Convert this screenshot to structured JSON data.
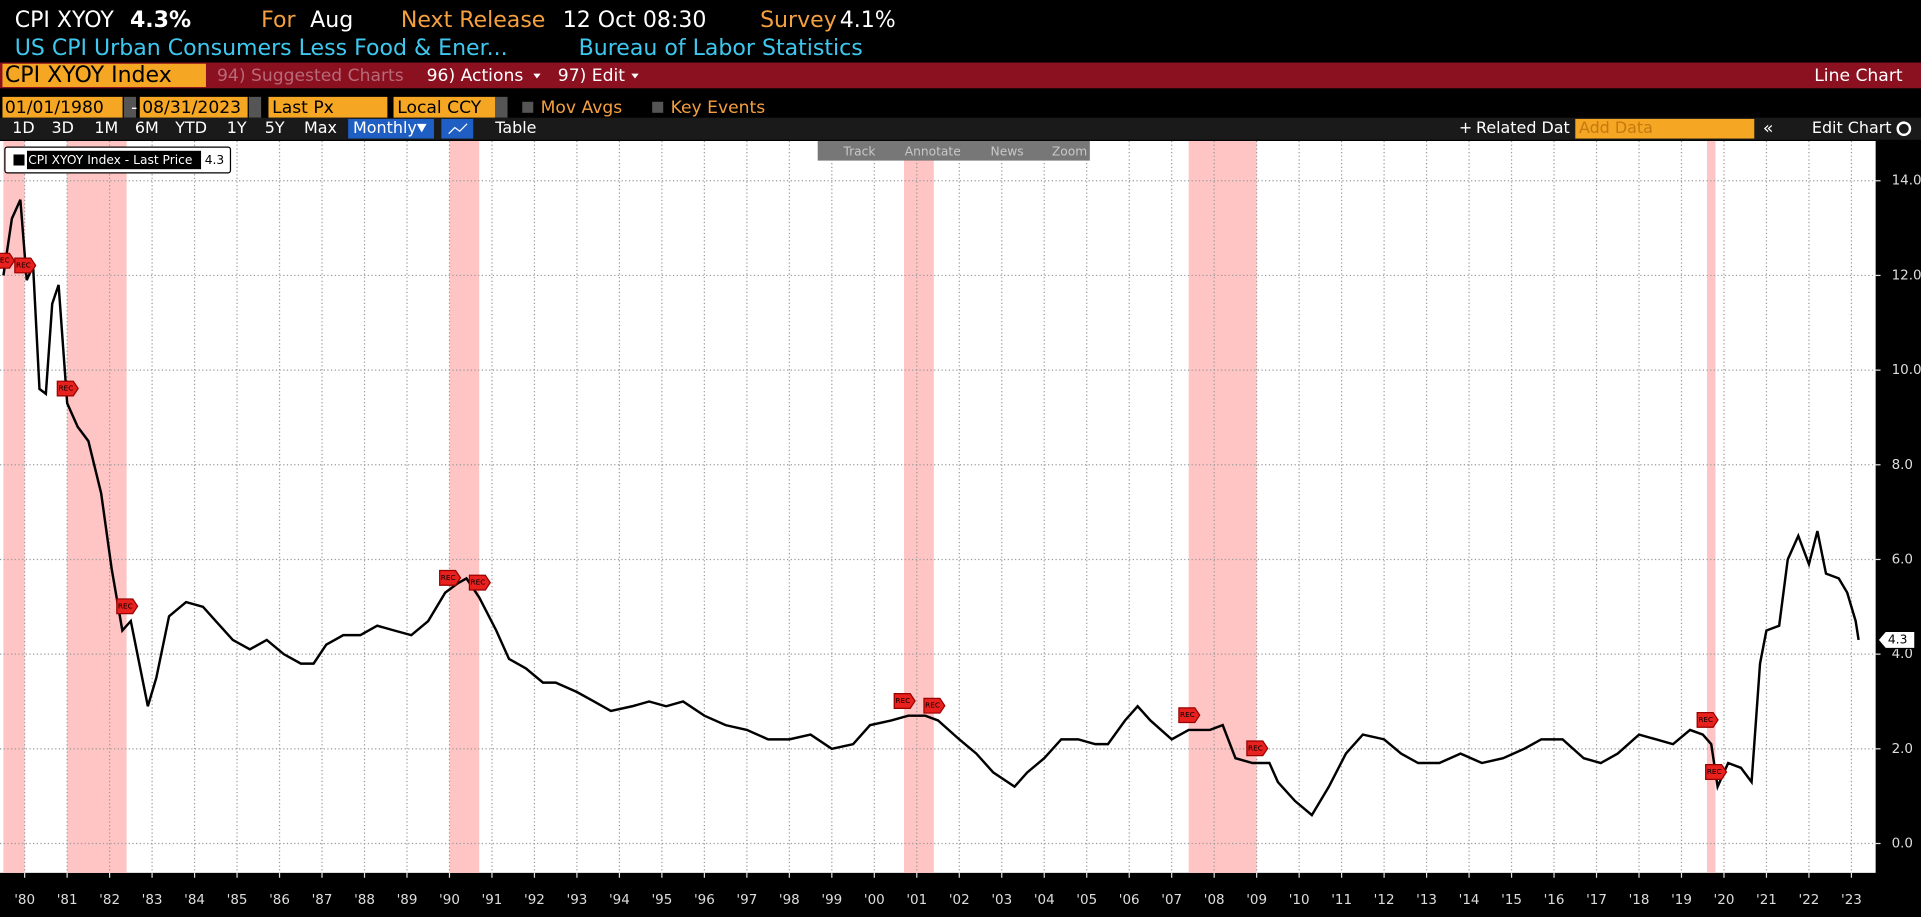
{
  "header": {
    "ticker": "CPI XYOY",
    "last": "4.3%",
    "for_label": "For",
    "for_value": "Aug",
    "release_label": "Next Release",
    "release_value": "12 Oct 08:30",
    "survey_label": "Survey",
    "survey_value": "4.1%",
    "description": "US CPI Urban Consumers Less Food & Ener...",
    "source": "Bureau of Labor Statistics"
  },
  "command_bar": {
    "security": "CPI XYOY Index",
    "menu": [
      "94) Suggested Charts",
      "96) Actions",
      "97) Edit"
    ],
    "view": "Line Chart"
  },
  "settings": {
    "start": "01/01/1980",
    "separator": "-",
    "end": "08/31/2023",
    "field": "Last Px",
    "currency": "Local CCY",
    "mov_avgs": "Mov Avgs",
    "key_events": "Key Events"
  },
  "toolbar": {
    "periods": [
      "1D",
      "3D",
      "1M",
      "6M",
      "YTD",
      "1Y",
      "5Y",
      "Max"
    ],
    "frequency": "Monthly",
    "table": "Table",
    "related": "Related Dat",
    "add_data": "Add Data",
    "edit_chart": "Edit Chart"
  },
  "tools": [
    "Track",
    "Annotate",
    "News",
    "Zoom"
  ],
  "chart_data": {
    "type": "line",
    "legend": "CPI XYOY Index - Last Price",
    "last_value": 4.3,
    "rec_label": "REC",
    "xlim": [
      1979.92,
      2024.07
    ],
    "ylim": [
      -0.62,
      14.84
    ],
    "grid": true,
    "yticks": [
      {
        "value": 0,
        "label": "0.0"
      },
      {
        "value": 2,
        "label": "2.0"
      },
      {
        "value": 4,
        "label": "4.0"
      },
      {
        "value": 6,
        "label": "6.0"
      },
      {
        "value": 8,
        "label": "8.0"
      },
      {
        "value": 10,
        "label": "10.0"
      },
      {
        "value": 12,
        "label": "12.0"
      },
      {
        "value": 14,
        "label": "14.0"
      }
    ],
    "xticks": [
      {
        "value": 1980.5,
        "label": "'80"
      },
      {
        "value": 1981.5,
        "label": "'81"
      },
      {
        "value": 1982.5,
        "label": "'82"
      },
      {
        "value": 1983.5,
        "label": "'83"
      },
      {
        "value": 1984.5,
        "label": "'84"
      },
      {
        "value": 1985.5,
        "label": "'85"
      },
      {
        "value": 1986.5,
        "label": "'86"
      },
      {
        "value": 1987.5,
        "label": "'87"
      },
      {
        "value": 1988.5,
        "label": "'88"
      },
      {
        "value": 1989.5,
        "label": "'89"
      },
      {
        "value": 1990.5,
        "label": "'90"
      },
      {
        "value": 1991.5,
        "label": "'91"
      },
      {
        "value": 1992.5,
        "label": "'92"
      },
      {
        "value": 1993.5,
        "label": "'93"
      },
      {
        "value": 1994.5,
        "label": "'94"
      },
      {
        "value": 1995.5,
        "label": "'95"
      },
      {
        "value": 1996.5,
        "label": "'96"
      },
      {
        "value": 1997.5,
        "label": "'97"
      },
      {
        "value": 1998.5,
        "label": "'98"
      },
      {
        "value": 1999.5,
        "label": "'99"
      },
      {
        "value": 2000.5,
        "label": "'00"
      },
      {
        "value": 2001.5,
        "label": "'01"
      },
      {
        "value": 2002.5,
        "label": "'02"
      },
      {
        "value": 2003.5,
        "label": "'03"
      },
      {
        "value": 2004.5,
        "label": "'04"
      },
      {
        "value": 2005.5,
        "label": "'05"
      },
      {
        "value": 2006.5,
        "label": "'06"
      },
      {
        "value": 2007.5,
        "label": "'07"
      },
      {
        "value": 2008.5,
        "label": "'08"
      },
      {
        "value": 2009.5,
        "label": "'09"
      },
      {
        "value": 2010.5,
        "label": "'10"
      },
      {
        "value": 2011.5,
        "label": "'11"
      },
      {
        "value": 2012.5,
        "label": "'12"
      },
      {
        "value": 2013.5,
        "label": "'13"
      },
      {
        "value": 2014.5,
        "label": "'14"
      },
      {
        "value": 2015.5,
        "label": "'15"
      },
      {
        "value": 2016.5,
        "label": "'16"
      },
      {
        "value": 2017.5,
        "label": "'17"
      },
      {
        "value": 2018.5,
        "label": "'18"
      },
      {
        "value": 2019.5,
        "label": "'19"
      },
      {
        "value": 2020.5,
        "label": "'20"
      },
      {
        "value": 2021.5,
        "label": "'21"
      },
      {
        "value": 2022.5,
        "label": "'22"
      },
      {
        "value": 2023.5,
        "label": "'23"
      }
    ],
    "recessions": [
      {
        "start": 1980.0,
        "end": 1980.5
      },
      {
        "start": 1981.5,
        "end": 1982.9
      },
      {
        "start": 1990.5,
        "end": 1991.2
      },
      {
        "start": 2001.2,
        "end": 2001.9
      },
      {
        "start": 2007.9,
        "end": 2009.5
      },
      {
        "start": 2020.1,
        "end": 2020.3
      }
    ],
    "series": [
      {
        "name": "CPI XYOY Index - Last Price",
        "color": "#000000",
        "x": [
          1980.0,
          1980.2,
          1980.4,
          1980.55,
          1980.7,
          1980.85,
          1981.0,
          1981.15,
          1981.3,
          1981.5,
          1981.75,
          1982.0,
          1982.3,
          1982.55,
          1982.8,
          1983.0,
          1983.4,
          1983.6,
          1983.9,
          1984.3,
          1984.7,
          1985.0,
          1985.4,
          1985.8,
          1986.2,
          1986.6,
          1987.0,
          1987.3,
          1987.6,
          1988.0,
          1988.4,
          1988.8,
          1989.2,
          1989.6,
          1990.0,
          1990.4,
          1990.7,
          1990.9,
          1991.2,
          1991.6,
          1991.9,
          1992.3,
          1992.7,
          1993.0,
          1993.5,
          1993.9,
          1994.3,
          1994.8,
          1995.2,
          1995.6,
          1996.0,
          1996.5,
          1997.0,
          1997.5,
          1998.0,
          1998.5,
          1999.0,
          1999.5,
          2000.0,
          2000.4,
          2000.9,
          2001.3,
          2001.7,
          2002.0,
          2002.5,
          2002.9,
          2003.3,
          2003.8,
          2004.1,
          2004.5,
          2004.9,
          2005.3,
          2005.7,
          2006.0,
          2006.4,
          2006.7,
          2007.0,
          2007.5,
          2007.9,
          2008.4,
          2008.7,
          2009.0,
          2009.4,
          2009.8,
          2010.0,
          2010.4,
          2010.8,
          2011.2,
          2011.6,
          2012.0,
          2012.5,
          2012.9,
          2013.3,
          2013.8,
          2014.3,
          2014.8,
          2015.3,
          2015.8,
          2016.2,
          2016.7,
          2017.2,
          2017.6,
          2018.0,
          2018.5,
          2018.9,
          2019.3,
          2019.7,
          2020.0,
          2020.2,
          2020.35,
          2020.6,
          2020.9,
          2021.15,
          2021.35,
          2021.5,
          2021.8,
          2022.0,
          2022.25,
          2022.5,
          2022.7,
          2022.9,
          2023.2,
          2023.4,
          2023.6,
          2023.67
        ],
        "values": [
          12.0,
          13.2,
          13.6,
          11.9,
          12.2,
          9.6,
          9.5,
          11.4,
          11.8,
          9.3,
          8.8,
          8.5,
          7.4,
          5.8,
          4.5,
          4.7,
          2.9,
          3.5,
          4.8,
          5.1,
          5.0,
          4.7,
          4.3,
          4.1,
          4.3,
          4.0,
          3.8,
          3.8,
          4.2,
          4.4,
          4.4,
          4.6,
          4.5,
          4.4,
          4.7,
          5.3,
          5.5,
          5.6,
          5.2,
          4.5,
          3.9,
          3.7,
          3.4,
          3.4,
          3.2,
          3.0,
          2.8,
          2.9,
          3.0,
          2.9,
          3.0,
          2.7,
          2.5,
          2.4,
          2.2,
          2.2,
          2.3,
          2.0,
          2.1,
          2.5,
          2.6,
          2.7,
          2.7,
          2.6,
          2.2,
          1.9,
          1.5,
          1.2,
          1.5,
          1.8,
          2.2,
          2.2,
          2.1,
          2.1,
          2.6,
          2.9,
          2.6,
          2.2,
          2.4,
          2.4,
          2.5,
          1.8,
          1.7,
          1.7,
          1.3,
          0.9,
          0.6,
          1.2,
          1.9,
          2.3,
          2.2,
          1.9,
          1.7,
          1.7,
          1.9,
          1.7,
          1.8,
          2.0,
          2.2,
          2.2,
          1.8,
          1.7,
          1.9,
          2.3,
          2.2,
          2.1,
          2.4,
          2.3,
          2.1,
          1.2,
          1.7,
          1.6,
          1.3,
          3.8,
          4.5,
          4.6,
          6.0,
          6.5,
          5.9,
          6.6,
          5.7,
          5.6,
          5.3,
          4.7,
          4.3
        ]
      }
    ]
  }
}
